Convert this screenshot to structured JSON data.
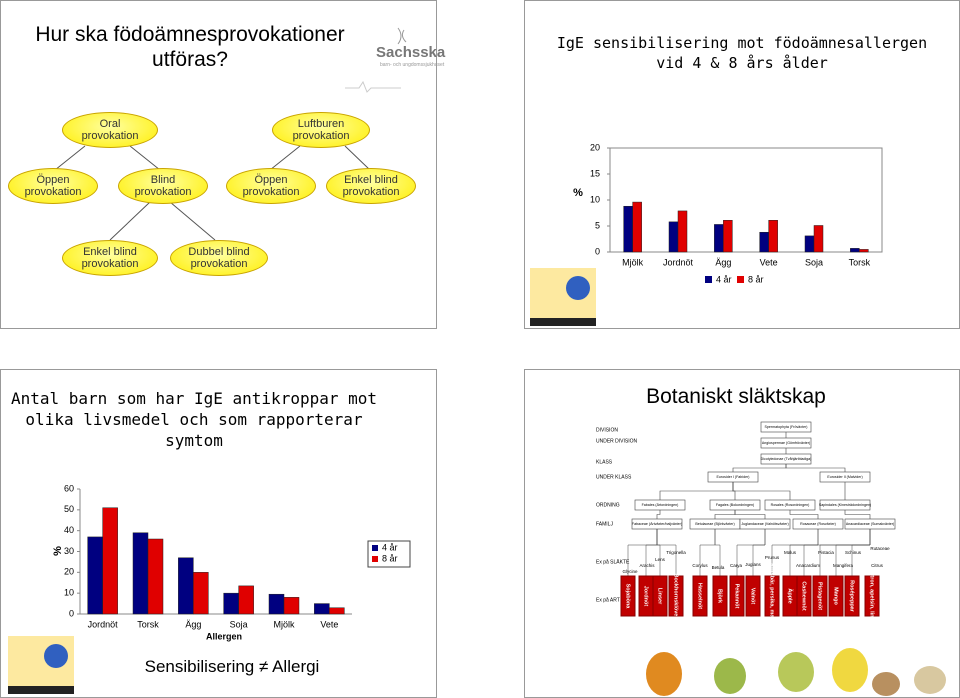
{
  "provocation_slide": {
    "title": "Hur ska födoämnesprovokationer utföras?",
    "logo": {
      "name": "Sachsska",
      "subtitle": "barn- och ungdomssjukhuset"
    },
    "nodes": [
      "Oral provokation",
      "Luftburen provokation",
      "Öppen provokation",
      "Blind provokation",
      "Öppen provokation",
      "Enkel blind provokation",
      "Enkel blind provokation",
      "Dubbel blind provokation"
    ]
  },
  "chart_data": [
    {
      "type": "bar",
      "title": "IgE sensibilisering mot födoämnesallergen vid 4 & 8 års ålder",
      "y_label": "%",
      "categories": [
        "Mjölk",
        "Jordnöt",
        "Ägg",
        "Vete",
        "Soja",
        "Torsk"
      ],
      "series": [
        {
          "name": "4 år",
          "color": "#000080",
          "values": [
            8.8,
            5.8,
            5.3,
            3.8,
            3.1,
            0.7
          ]
        },
        {
          "name": "8 år",
          "color": "#e00000",
          "values": [
            9.6,
            7.9,
            6.1,
            6.1,
            5.1,
            0.5
          ]
        }
      ],
      "ylim": [
        0,
        20
      ],
      "yticks": [
        0,
        5,
        10,
        15,
        20
      ],
      "grid": false,
      "legend": "bottom"
    },
    {
      "type": "bar",
      "title": "Antal barn som har IgE antikroppar mot olika livsmedel och som rapporterar symtom",
      "y_label": "%",
      "x_label": "Allergen",
      "categories": [
        "Jordnöt",
        "Torsk",
        "Ägg",
        "Soja",
        "Mjölk",
        "Vete"
      ],
      "series": [
        {
          "name": "4 år",
          "color": "#000080",
          "values": [
            37,
            39,
            27,
            10,
            9.5,
            5
          ]
        },
        {
          "name": "8 år",
          "color": "#e00000",
          "values": [
            51,
            36,
            20,
            13.5,
            8,
            3
          ]
        }
      ],
      "ylim": [
        0,
        60
      ],
      "yticks": [
        0,
        10,
        20,
        30,
        40,
        50,
        60
      ],
      "grid": false,
      "legend": "right",
      "annotation": "Sensibilisering ≠ Allergi"
    }
  ],
  "botany_slide": {
    "title": "Botaniskt släktskap",
    "ranks": [
      "DIVISION",
      "UNDER DIVISION",
      "KLASS",
      "UNDER KLASS",
      "ORDNING",
      "FAMILJ",
      "Ex på SLÄKTE",
      "Ex på ART"
    ],
    "nodes": [
      "Spermatophyta (Fröväxter)",
      "Angiospermae (Gömfröväxter)",
      "Dicotyledonae (Tvåhjärtbladiga)",
      "Eurosider I (Fabider)",
      "Eurosider II (Malvider)",
      "Fabales (Ärtordningen)",
      "Fagales (Bokordningen)",
      "Rosales (Rosordningen)",
      "Sapindales (Kinesträdordningen)",
      "Fabaceae (Ärtväxter/baljväxter)",
      "Betulaceae (Björkväxter)",
      "Juglandaceae (Valnötsväxter)",
      "Rosaceae (Rosväxter)",
      "Anacardiaceae (Sumakväxter)"
    ],
    "genera": [
      "Glycine",
      "Arachis",
      "Lens",
      "Trigonella",
      "Corylus",
      "Betula",
      "Carya",
      "Juglans",
      "Prunus",
      "Malus",
      "Anacardium",
      "Pistacia",
      "Mangifera",
      "Schinus",
      "Rutaceae",
      "Citrus"
    ],
    "species": [
      "Sojaböna",
      "Jordnöt",
      "Linser",
      "Bockhornsklöver",
      "Hasselnöt",
      "Björk",
      "Pekannöt",
      "Valnöt",
      "Körsbär, persika, mandel",
      "Äpple",
      "Cashewnöt",
      "Pistagenöt",
      "Mango",
      "Rosépeppar",
      "Citron, apelsin, lime"
    ]
  }
}
